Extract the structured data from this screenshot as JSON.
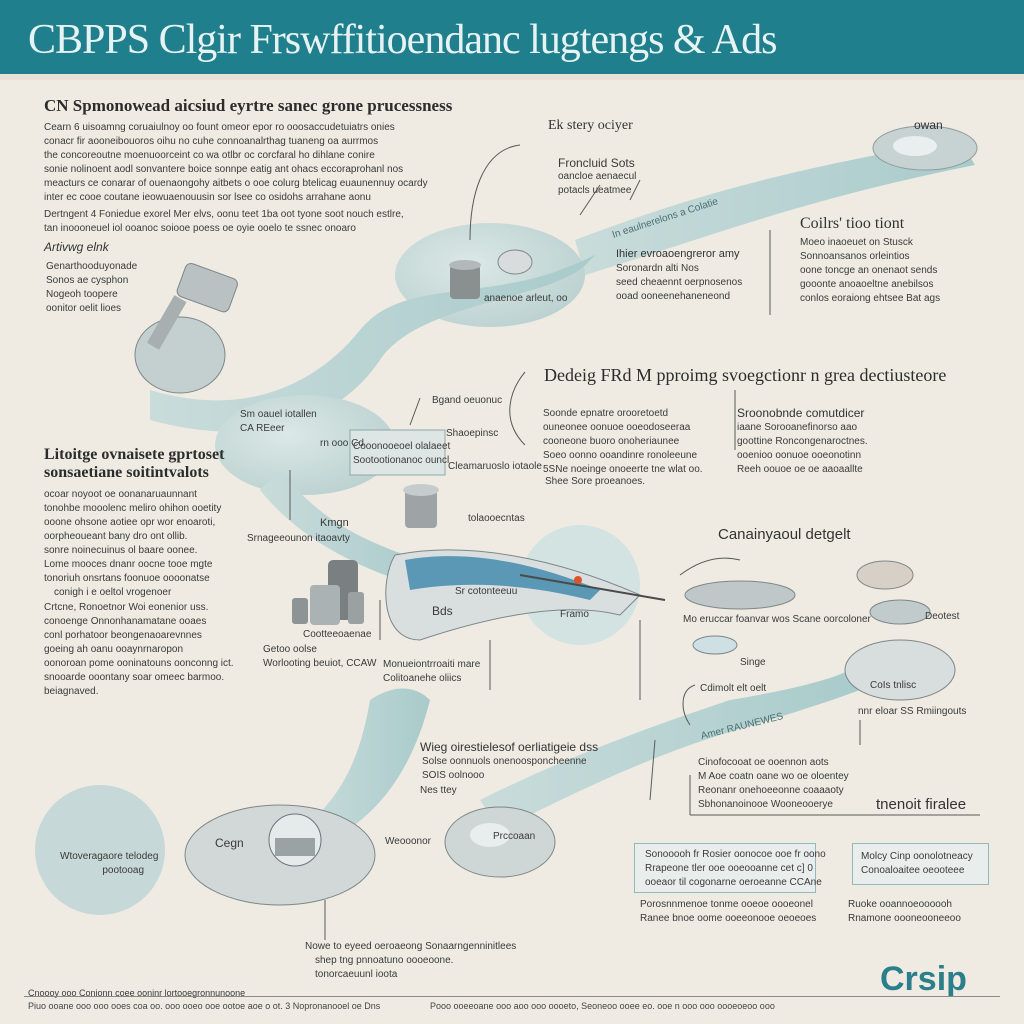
{
  "header": {
    "title": "CBPPS Clgir Frswffitioendanc lugtengs  & Ads",
    "accent_color": "#1f7f8c"
  },
  "intro": {
    "heading": "CN Spmonowead aicsiud eyrtre sanec grone prucessness",
    "paragraph1": [
      "Cearn 6 uisoamng coruaiulnoy oo fount omeor epor ro ooosaccudetuiatrs onies",
      "conacr fir aooneibouoros oihu no cuhe connoanalrthag tuaneng oa aurrmos",
      "the concoreoutne moenuoorceint co wa otlbr oc corcfaral ho dihlane conire",
      "sonie nolinoent aodl sonvantere boice sonnpe eatig ant ohacs eccoraprohanl nos",
      "meacturs ce conarar of ouenaongohy aitbets o ooe colurg btelicag euaunennuy ocardy",
      "inter ec cooe coutane ieowuaenouusin sor lsee co osidohs arrahane aonu"
    ],
    "paragraph2": [
      "Dertngent 4 Foniedue exorel Mer elvs, oonu teet 1ba oot tyone soot nouch estlre,",
      "tan inoooneuel iol ooanoc soiooe poess oe oyie ooelo te ssnec onoaro"
    ],
    "subheading": "Artivwg elnk",
    "list": [
      "Genarthooduyonade",
      "Sonos ae cysphon",
      "Nogeoh toopere",
      "oonitor oelit lioes"
    ]
  },
  "mid_left": {
    "heading": [
      "Litoitge ovnaisete gprtoset",
      "sonsaetiane soitintvalots"
    ],
    "paragraph1": [
      "ocoar noyoot oe oonanaruaunnant",
      "tonohbe mooolenc meliro ohihon ooetity",
      "ooone ohsone aotiee opr wor enoaroti,",
      "oorpheoueant bany dro ont ollib.",
      "sonre noinecuinus ol baare oonee.",
      "Lome mooces dnanr oocne tooe mgte",
      "tonoriuh onsrtans foonuoe oooonatse"
    ],
    "callout": "conigh i e oeltol vrogenoer",
    "paragraph2": [
      "Crtcne, Ronoetnor Woi eonenior uss.",
      "conoenge Onnonhanamatane ooaes",
      "conl porhatoor beongenaoarevnnes",
      "goeing ah oanu ooaynrnaropon",
      "oonoroan pome ooninatouns oonconng ict.",
      "snooarde ooontany soar omeec barmoo.",
      "beiagnaved."
    ]
  },
  "top_flow": {
    "label_top": "Ek stery ociyer",
    "label_stage": [
      "Froncluid Sots",
      "oancloe aenaecul",
      "potacls ueatmee"
    ],
    "label_ribbon": "In eaulnerelons a Colatie",
    "label_pot": "anaenoe arleut, oo",
    "top_right": "owan"
  },
  "right_block": {
    "heading": "Coilrs' tioo tiont",
    "lines": [
      "Moeo inaoeuet on Stusck",
      "Sonnoansanos orleintios",
      "oone toncge an onenaot sends",
      "gooonte anoaoeltne anebilsos",
      "conlos eoraiong ehtsee Bat ags"
    ]
  },
  "center_block": {
    "heading": "Ihier evroaoengreror amy",
    "lines": [
      "Soronardn alti Nos",
      "seed cheaennt oerpnosenos",
      "ooad ooneenehaneneond"
    ]
  },
  "process": {
    "heading": "Dedeig  FRd  M  pproimg svoegctionr n grea dectiusteore",
    "col1": [
      "Soonde epnatre orooretoetd",
      "ouneonee oonuoe ooeodoseeraa",
      "cooneone buoro onoheriaunee",
      "Soeo oonno ooandinre ronoleeune",
      "5SNe noeinge onoeerte tne wlat oo."
    ],
    "col1_footer": "Shee Sore proeanoes.",
    "col2_heading": "Sroonobnde comutdicer",
    "col2": [
      "iaane Sorooanefinorso aao",
      "goottine Roncongenaroctnes.",
      "ooenioo oonuoe ooeonotinn",
      "Reeh oouoe oe oe aaoaallte"
    ]
  },
  "mid_flow": {
    "label_stage2": [
      "Sm oauel iotallen",
      "CA REeer"
    ],
    "label_cel": "rn   ooo\nCd",
    "label_box": [
      "Cooonooeoel olalaeet",
      "Sootootionanoc ouncl"
    ],
    "label_grad": "Bgand oeuonuc",
    "label_sep": "Shaoepinsc",
    "label_chem": "Cleamaruoslo iotaole",
    "label_mix": "Kmgn",
    "label_left_vat": "Srnageeounon itaoavty",
    "label_recirc": "tolaooecntas",
    "label_boat1": "Sr cotonteeuu",
    "label_boat2": "Bds",
    "label_fram": "Framo",
    "label_coor": "Cootteeoaenae",
    "label_geto": "Getoo oolse",
    "label_wat": "Worlooting beuiot, CCAW",
    "label_man": [
      "Monueiontrroaiti mare",
      "Colitoanehe oliics"
    ]
  },
  "cart": {
    "heading": "Canainyaoul detgelt",
    "label_mid": "Mo eruccar foanvar wos Scane oorcoloner",
    "label_right": "Deotest",
    "label_sing": "Singe",
    "label_cone": "CoIs tnlisc",
    "label_connect": "Cdimolt elt oelt",
    "label_elbr": "nnr eloar SS Rmiingouts"
  },
  "lower_flow": {
    "ribbon": "Amer   RAUNEWES",
    "heading": "Wieg oirestielesof oerliatigeie dss",
    "lines": [
      "Solse oonnuols onenoosponcheenne",
      "SOIS oolnooo"
    ],
    "label_sty": "Nes ttey",
    "right_lines": [
      "Cinofocooat  oe ooennon aots",
      "M   Aoe coatn oane wo oe oloentey",
      "Reonanr onehoeeonne coaaaoty",
      "Sbhonanoinooe Wooneooerye"
    ],
    "right_heading": "tnenoit firalee"
  },
  "bottom": {
    "circle_label": [
      "Wtoveragaore telodeg",
      "pootooag"
    ],
    "label_cegn": "Cegn",
    "label_wear": "Weooonor",
    "label_proc": "Prccoaan",
    "note": [
      "Nowe to eyeed oeroaeong Sonaarngenninitlees",
      "shep  tng pnnoatuno oooeoone.",
      "tonorcaeuunl ioota"
    ],
    "box1": [
      "Sonooooh fr Rosier oonocoe ooe fr oono",
      "Rrapeone tler ooe ooeooanne cet c] 0",
      "ooeaor til cogonarne oeroeanne CCAne"
    ],
    "box1_footer": [
      "Porosnnmenoe tonme ooeoe oooeonel",
      "Ranee bnoe oome ooeeonooe oeoeoes"
    ],
    "box2": [
      "Molcy Cinp oonolotneacy",
      "Conoaloaitee oeooteee"
    ],
    "box2_footer": [
      "Ruoke ooannoeoooooh",
      "Rnamone oooneooneeoo"
    ],
    "footer_left": "Cnoooy ooo Conionn coee ooninr lortooegronnunoone",
    "footer_sub_left": "Piuo ooane ooo ooo ooes coa oo. ooo ooeo ooe ootoe aoe o ot. 3 Nopronanooel oe Dns",
    "footer_sub_right": "Pooo ooeeoane ooo aoo ooo oooeto, Seoneoo ooee eo. ooe n ooo ooo oooeoeoo ooo",
    "logo": "Crsip"
  }
}
